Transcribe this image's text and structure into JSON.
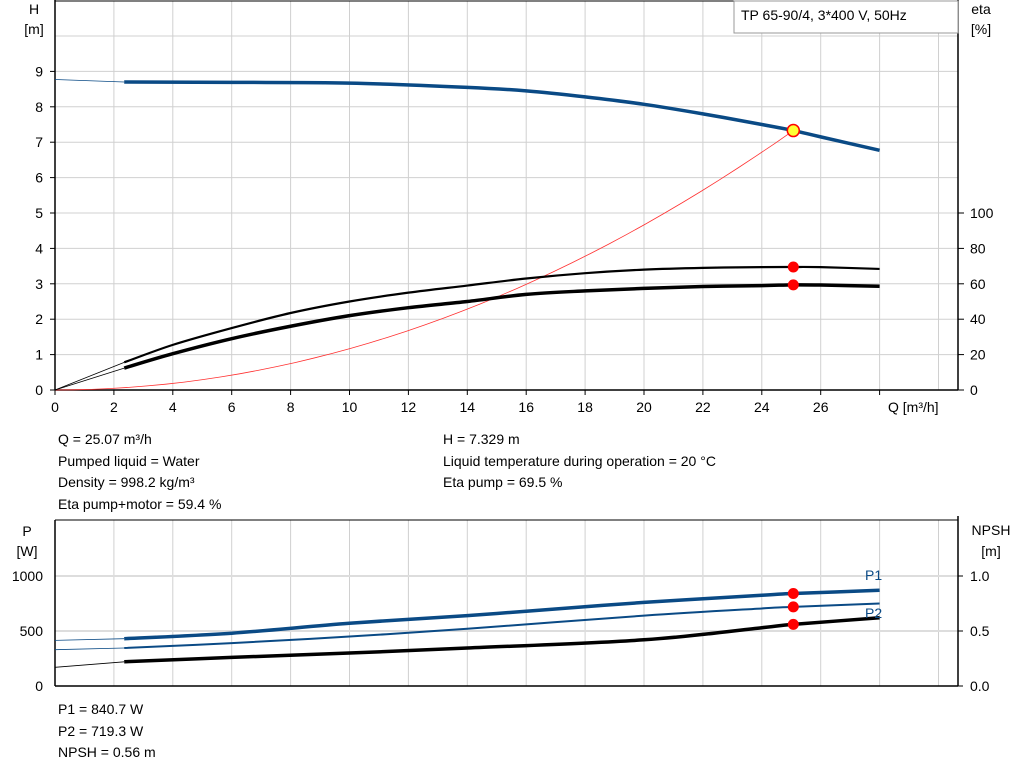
{
  "chart_data": [
    {
      "type": "line",
      "title": "TP 65-90/4, 3*400 V, 50Hz",
      "xlabel": "Q [m³/h]",
      "ylabel_left": [
        "H",
        "[m]"
      ],
      "ylabel_right": [
        "eta",
        "[%]"
      ],
      "xlim": [
        0,
        30.7
      ],
      "ylim_left": [
        0,
        11
      ],
      "ylim_right": [
        0,
        220
      ],
      "x_ticks": [
        0,
        2,
        4,
        6,
        8,
        10,
        12,
        14,
        16,
        18,
        20,
        22,
        24,
        26
      ],
      "y_ticks_left": [
        0,
        1,
        2,
        3,
        4,
        5,
        6,
        7,
        8,
        9
      ],
      "y_ticks_right": [
        0,
        20,
        40,
        60,
        80,
        100
      ],
      "grid": true,
      "series": [
        {
          "key": "H",
          "axis": "left",
          "color": "#0a4a85",
          "extrapolated": {
            "x": [
              0,
              2.35
            ],
            "y": [
              8.77,
              8.7
            ]
          },
          "x": [
            2.35,
            6,
            10,
            14,
            16,
            18,
            20,
            22,
            24,
            25.07,
            26,
            28
          ],
          "y": [
            8.7,
            8.69,
            8.67,
            8.55,
            8.45,
            8.28,
            8.07,
            7.8,
            7.5,
            7.329,
            7.15,
            6.77
          ]
        },
        {
          "key": "eta_pump",
          "axis": "right",
          "color": "#000000",
          "extrapolated": {
            "x": [
              0,
              2.35
            ],
            "y": [
              0,
              15.6
            ]
          },
          "x": [
            2.35,
            4,
            6,
            8,
            10,
            12,
            14,
            16,
            18,
            20,
            22,
            24,
            25.07,
            26,
            28
          ],
          "y": [
            15.6,
            25.5,
            35,
            43.5,
            50,
            55,
            59,
            63,
            66,
            68,
            69,
            69.4,
            69.5,
            69.4,
            68.4
          ]
        },
        {
          "key": "eta_pump_motor",
          "axis": "right",
          "color": "#000000",
          "extrapolated": {
            "x": [
              0,
              2.35
            ],
            "y": [
              0,
              12.4
            ]
          },
          "x": [
            2.35,
            4,
            6,
            8,
            10,
            12,
            14,
            16,
            18,
            20,
            22,
            24,
            25.07,
            26,
            28
          ],
          "y": [
            12.4,
            20.5,
            29,
            36,
            42,
            46.5,
            50,
            54,
            56,
            57.4,
            58.5,
            59,
            59.4,
            59.3,
            58.6
          ]
        },
        {
          "key": "system_curve",
          "axis": "left",
          "color": "#ff3030",
          "equation": "H = 7.329*(Q/25.07)^2",
          "x_range": [
            0,
            25.07
          ]
        }
      ],
      "duty_point": {
        "Q": 25.07,
        "H": 7.329,
        "eta_pump": 69.5,
        "eta_pump_motor": 59.4
      }
    },
    {
      "type": "line",
      "ylabel_left": [
        "P",
        "[W]"
      ],
      "ylabel_right": [
        "NPSH",
        "[m]"
      ],
      "xlim": [
        0,
        30.7
      ],
      "ylim_left": [
        0,
        1500
      ],
      "ylim_right": [
        0,
        1.5
      ],
      "y_ticks_left": [
        0,
        500,
        1000
      ],
      "y_ticks_right": [
        "0.0",
        "0.5",
        "1.0"
      ],
      "grid": true,
      "series": [
        {
          "name": "P1",
          "axis": "left",
          "color": "#0a4a85",
          "extrapolated": {
            "x": [
              0,
              2.35
            ],
            "y": [
              415,
              430
            ]
          },
          "x": [
            2.35,
            6,
            10,
            14,
            16,
            20,
            24,
            25.07,
            28
          ],
          "y": [
            430,
            480,
            570,
            640,
            680,
            760,
            825,
            840.7,
            870
          ]
        },
        {
          "name": "P2",
          "axis": "left",
          "color": "#0a4a85",
          "extrapolated": {
            "x": [
              0,
              2.35
            ],
            "y": [
              330,
              345
            ]
          },
          "x": [
            2.35,
            6,
            10,
            14,
            20,
            24,
            25.07,
            28
          ],
          "y": [
            345,
            390,
            450,
            520,
            640,
            705,
            719.3,
            750
          ]
        },
        {
          "key": "NPSH",
          "axis": "right",
          "color": "#000000",
          "extrapolated": {
            "x": [
              0,
              2.35
            ],
            "y": [
              0.17,
              0.22
            ]
          },
          "x": [
            2.35,
            6,
            10,
            14,
            20,
            24,
            25.07,
            28
          ],
          "y": [
            0.22,
            0.26,
            0.3,
            0.345,
            0.42,
            0.53,
            0.56,
            0.62
          ]
        }
      ],
      "duty_point": {
        "Q": 25.07,
        "P1": 840.7,
        "P2": 719.3,
        "NPSH": 0.56
      }
    }
  ],
  "info": {
    "left": [
      "Q = 25.07 m³/h",
      "Pumped liquid = Water",
      "Density = 998.2 kg/m³",
      "Eta pump+motor = 59.4 %"
    ],
    "right": [
      "H = 7.329 m",
      "Liquid temperature during operation = 20 °C",
      "Eta pump = 69.5 %"
    ],
    "bottom": [
      "P1 = 840.7 W",
      "P2 = 719.3 W",
      "NPSH = 0.56 m"
    ]
  },
  "colors": {
    "curve_blue": "#0a4a85",
    "duty_marker": "#ff0000",
    "duty_marker_fill": "#ffff33",
    "grid": "#d0d0d0"
  }
}
